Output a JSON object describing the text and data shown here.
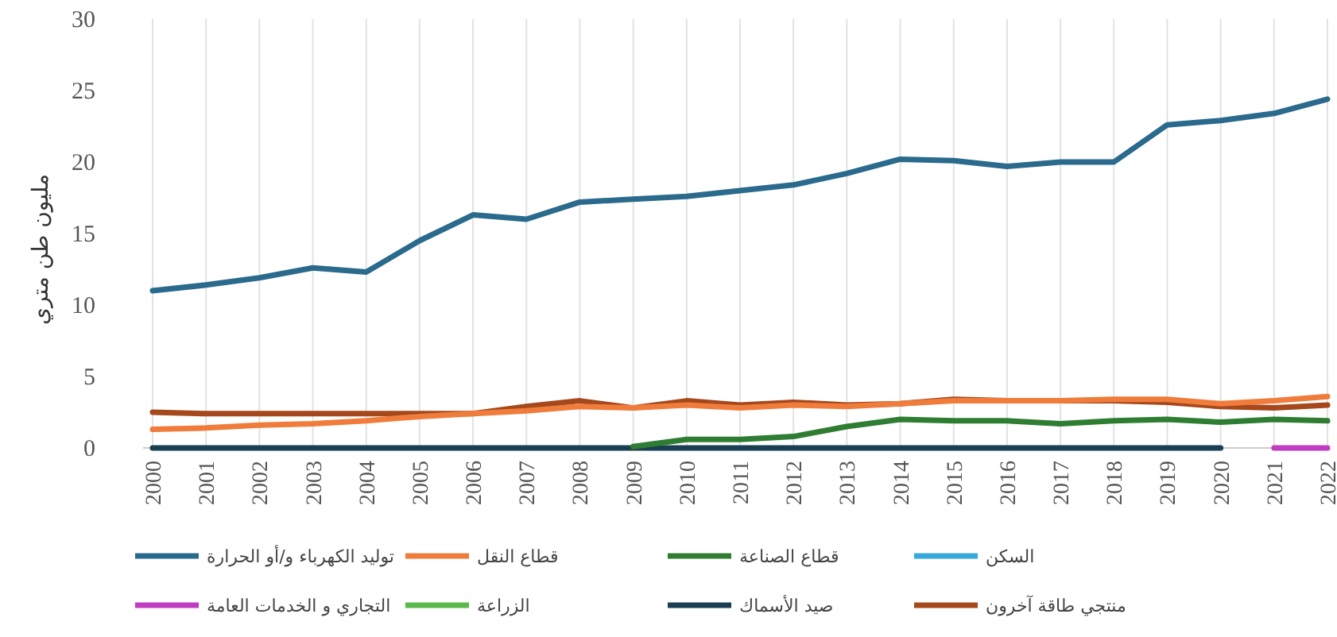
{
  "chart_data": {
    "type": "line",
    "ylabel": "مليون طن متري",
    "categories": [
      "2000",
      "2001",
      "2002",
      "2003",
      "2004",
      "2005",
      "2006",
      "2007",
      "2008",
      "2009",
      "2010",
      "2011",
      "2012",
      "2013",
      "2014",
      "2015",
      "2016",
      "2017",
      "2018",
      "2019",
      "2020",
      "2021",
      "2022"
    ],
    "ylim": [
      0,
      30
    ],
    "yticks": [
      0,
      5,
      10,
      15,
      20,
      25,
      30
    ],
    "grid": "x",
    "legend": "bottom",
    "line_style": "solid",
    "marker": "none",
    "series": [
      {
        "name": "السكن",
        "color": "#35a9dc",
        "values": [
          null,
          null,
          null,
          null,
          null,
          null,
          null,
          null,
          null,
          null,
          null,
          null,
          null,
          null,
          null,
          null,
          null,
          null,
          null,
          null,
          null,
          null,
          null
        ]
      },
      {
        "name": "الزراعة",
        "color": "#5ab84a",
        "values": [
          null,
          null,
          null,
          null,
          null,
          null,
          null,
          null,
          null,
          null,
          null,
          null,
          null,
          null,
          null,
          null,
          null,
          null,
          null,
          null,
          null,
          null,
          null
        ]
      },
      {
        "name": "صيد الأسماك",
        "color": "#1b3f52",
        "values": [
          0,
          0,
          0,
          0,
          0,
          0,
          0,
          0,
          0,
          0,
          0,
          0,
          0,
          0,
          0,
          0,
          0,
          0,
          0,
          0,
          0,
          null,
          null
        ]
      },
      {
        "name": "التجاري و الخدمات العامة",
        "color": "#c03cc0",
        "values": [
          null,
          null,
          null,
          null,
          null,
          null,
          null,
          null,
          null,
          null,
          null,
          null,
          null,
          null,
          null,
          null,
          null,
          null,
          null,
          null,
          null,
          0,
          0
        ]
      },
      {
        "name": "قطاع الصناعة",
        "color": "#2e7d32",
        "values": [
          null,
          null,
          null,
          null,
          null,
          null,
          null,
          null,
          null,
          0.1,
          0.6,
          0.6,
          0.8,
          1.5,
          2.0,
          1.9,
          1.9,
          1.7,
          1.9,
          2.0,
          1.8,
          2.0,
          1.9
        ]
      },
      {
        "name": "منتجي طاقة آخرون",
        "color": "#a5481c",
        "values": [
          2.5,
          2.4,
          2.4,
          2.4,
          2.4,
          2.4,
          2.4,
          2.9,
          3.3,
          2.8,
          3.3,
          3.0,
          3.2,
          3.0,
          3.1,
          3.4,
          3.3,
          3.3,
          3.3,
          3.2,
          2.9,
          2.8,
          3.0
        ]
      },
      {
        "name": "قطاع النقل",
        "color": "#f07c3c",
        "values": [
          1.3,
          1.4,
          1.6,
          1.7,
          1.9,
          2.2,
          2.4,
          2.6,
          2.9,
          2.8,
          3.0,
          2.8,
          3.0,
          2.9,
          3.1,
          3.3,
          3.3,
          3.3,
          3.4,
          3.4,
          3.1,
          3.3,
          3.6
        ]
      },
      {
        "name": "توليد الكهرباء و/أو الحرارة",
        "color": "#2a6a8c",
        "values": [
          11.0,
          11.4,
          11.9,
          12.6,
          12.3,
          14.5,
          16.3,
          16.0,
          17.2,
          17.4,
          17.6,
          18.0,
          18.4,
          19.2,
          20.2,
          20.1,
          19.7,
          20.0,
          20.0,
          22.6,
          22.9,
          23.4,
          24.4
        ]
      }
    ]
  }
}
